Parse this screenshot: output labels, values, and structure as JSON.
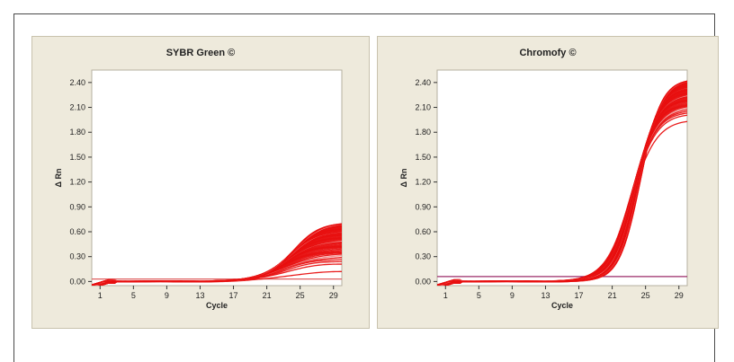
{
  "chart_data": [
    {
      "type": "line",
      "title": "SYBR Green ©",
      "xlabel": "Cycle",
      "ylabel": "Δ Rn",
      "x_ticks": [
        1,
        5,
        9,
        13,
        17,
        21,
        25,
        29
      ],
      "y_ticks": [
        "0.00",
        "0.30",
        "0.60",
        "0.90",
        "1.20",
        "1.50",
        "1.80",
        "2.10",
        "2.40"
      ],
      "xlim": [
        0,
        30
      ],
      "ylim": [
        -0.05,
        2.55
      ],
      "baseline": 0.03,
      "curves": {
        "midpoint_cycle": 23.5,
        "slope": 0.55,
        "plateau_min": 0.12,
        "plateau_max": 0.72,
        "count": 60
      },
      "colors": {
        "curves": "#e81010",
        "baseline": "#e06060"
      },
      "grid": false
    },
    {
      "type": "line",
      "title": "Chromofy ©",
      "xlabel": "Cycle",
      "ylabel": "Δ Rn",
      "x_ticks": [
        1,
        5,
        9,
        13,
        17,
        21,
        25,
        29
      ],
      "y_ticks": [
        "0.00",
        "0.30",
        "0.60",
        "0.90",
        "1.20",
        "1.50",
        "1.80",
        "2.10",
        "2.40"
      ],
      "xlim": [
        0,
        30
      ],
      "ylim": [
        -0.05,
        2.55
      ],
      "baseline": 0.06,
      "curves": {
        "midpoint_cycle": 23.8,
        "slope": 0.72,
        "plateau_min": 1.95,
        "plateau_max": 2.45,
        "count": 60
      },
      "colors": {
        "curves": "#e81010",
        "baseline": "#9b2b6a"
      },
      "grid": false
    }
  ]
}
